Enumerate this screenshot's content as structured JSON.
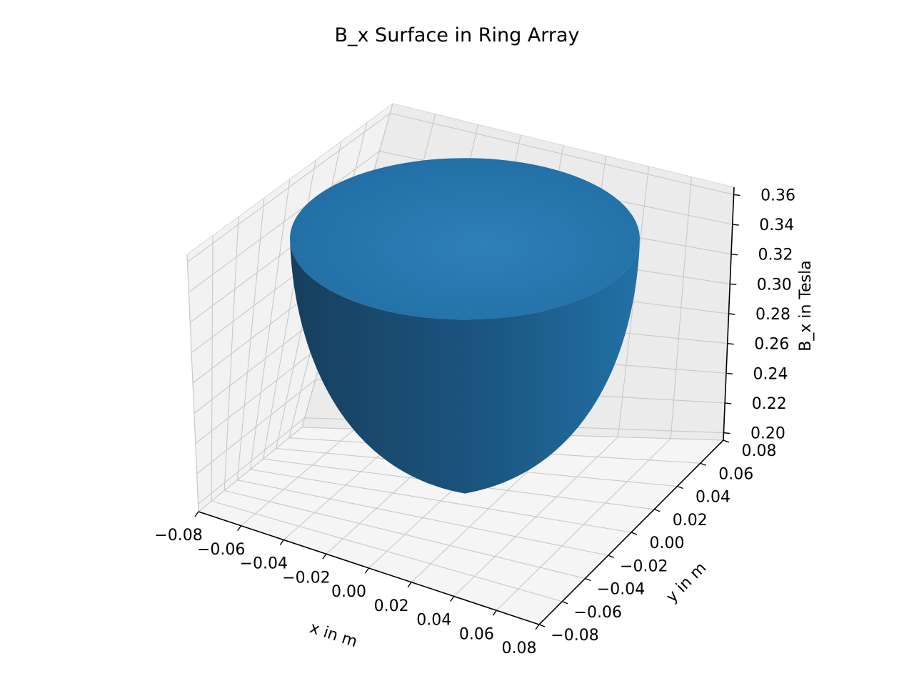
{
  "chart_data": {
    "type": "surface3d",
    "title": "B_x Surface in Ring Array",
    "xlabel": "x in m",
    "ylabel": "y in m",
    "zlabel": "B_x in Tesla",
    "x_ticks": [
      "−0.08",
      "−0.06",
      "−0.04",
      "−0.02",
      "0.00",
      "0.02",
      "0.04",
      "0.06",
      "0.08"
    ],
    "y_ticks": [
      "−0.08",
      "−0.06",
      "−0.04",
      "−0.02",
      "0.00",
      "0.02",
      "0.04",
      "0.06",
      "0.08"
    ],
    "z_ticks": [
      "0.20",
      "0.22",
      "0.24",
      "0.26",
      "0.28",
      "0.30",
      "0.32",
      "0.34",
      "0.36"
    ],
    "xlim": [
      -0.08,
      0.08
    ],
    "ylim": [
      -0.08,
      0.08
    ],
    "zlim": [
      0.195,
      0.365
    ],
    "surface": {
      "shape": "bowl (paraboloid) over a circular disk",
      "min_value": 0.2,
      "max_value": 0.35,
      "color": "#1f77b4"
    },
    "grid": true
  }
}
